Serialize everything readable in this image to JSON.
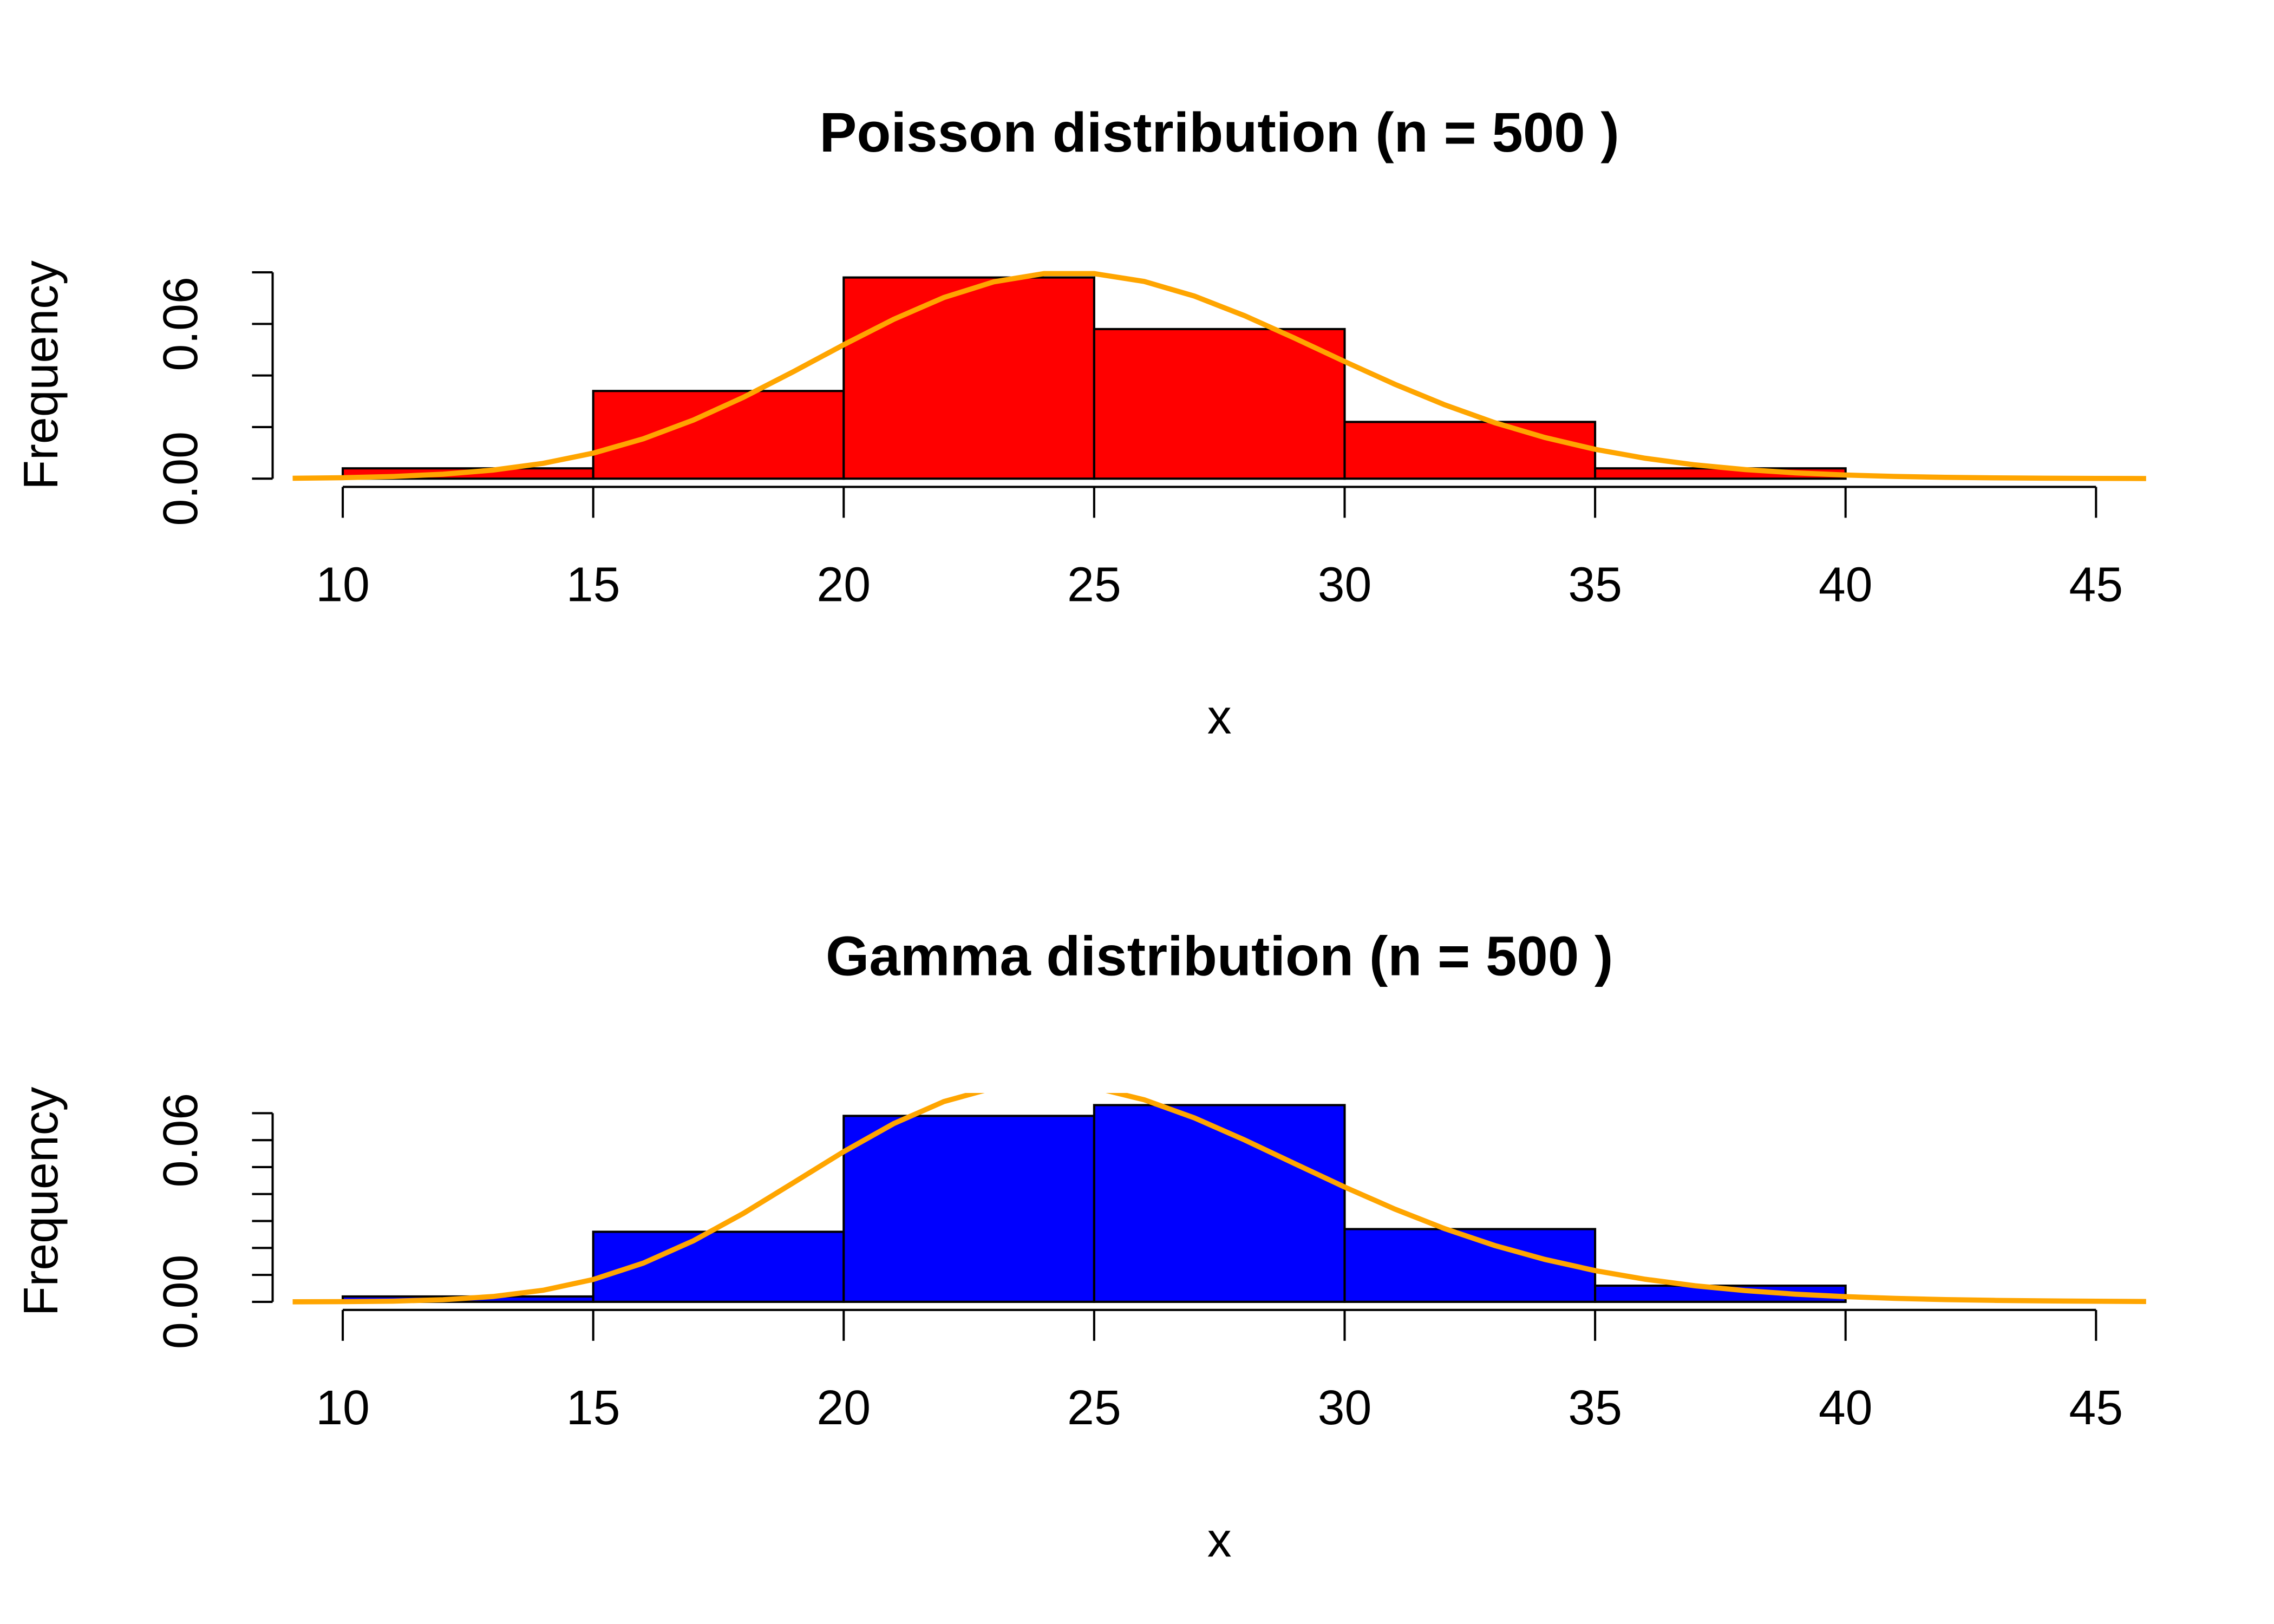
{
  "chart_data": [
    {
      "type": "histogram",
      "title": "Poisson distribution (n = 500 )",
      "xlabel": "x",
      "ylabel": "Frequency",
      "bins": [
        10,
        15,
        20,
        25,
        30,
        35,
        40
      ],
      "values": [
        0.004,
        0.034,
        0.078,
        0.058,
        0.022,
        0.004
      ],
      "color": "#ff0000",
      "xlim": [
        8.6,
        46.4
      ],
      "xticks": [
        10,
        15,
        20,
        25,
        30,
        35,
        40,
        45
      ],
      "ylim": [
        -0.0032,
        0.0835
      ],
      "yticks": [
        {
          "value": 0,
          "label": "0.00"
        },
        {
          "value": 0.02,
          "label": null
        },
        {
          "value": 0.04,
          "label": null
        },
        {
          "value": 0.06,
          "label": "0.06"
        },
        {
          "value": 0.08,
          "label": null
        }
      ],
      "curve": {
        "color": "#ffa500",
        "x": [
          9,
          10,
          11,
          12,
          13,
          14,
          15,
          16,
          17,
          18,
          19,
          20,
          21,
          22,
          23,
          24,
          25,
          26,
          27,
          28,
          29,
          30,
          31,
          32,
          33,
          34,
          35,
          36,
          37,
          38,
          39,
          40,
          41,
          42,
          43,
          44,
          45,
          46
        ],
        "values": [
          0.000146,
          0.000365,
          0.00083,
          0.00173,
          0.00332,
          0.00593,
          0.00989,
          0.01545,
          0.02273,
          0.03156,
          0.04153,
          0.05192,
          0.0618,
          0.07023,
          0.07634,
          0.07952,
          0.07952,
          0.07646,
          0.0708,
          0.06321,
          0.0545,
          0.04541,
          0.03662,
          0.02861,
          0.02168,
          0.01594,
          0.01138,
          0.00791,
          0.00534,
          0.00351,
          0.00225,
          0.00141,
          0.00086,
          0.00051,
          0.0003,
          0.00017,
          9e-05,
          5e-05
        ]
      }
    },
    {
      "type": "histogram",
      "title": "Gamma distribution (n = 500 )",
      "xlabel": "x",
      "ylabel": "Frequency",
      "bins": [
        10,
        15,
        20,
        25,
        30,
        35,
        40
      ],
      "values": [
        0.002,
        0.026,
        0.069,
        0.073,
        0.027,
        0.006
      ],
      "color": "#0000ff",
      "xlim": [
        8.6,
        46.4
      ],
      "xticks": [
        10,
        15,
        20,
        25,
        30,
        35,
        40,
        45
      ],
      "ylim": [
        -0.003,
        0.0775
      ],
      "yticks": [
        {
          "value": 0,
          "label": "0.00"
        },
        {
          "value": 0.01,
          "label": null
        },
        {
          "value": 0.02,
          "label": null
        },
        {
          "value": 0.03,
          "label": null
        },
        {
          "value": 0.04,
          "label": null
        },
        {
          "value": 0.05,
          "label": null
        },
        {
          "value": 0.06,
          "label": "0.06"
        },
        {
          "value": 0.07,
          "label": null
        }
      ],
      "curve": {
        "color": "#ffa500",
        "x": [
          9,
          10,
          11,
          12,
          13,
          14,
          15,
          16,
          17,
          18,
          19,
          20,
          21,
          22,
          23,
          24,
          25,
          26,
          27,
          28,
          29,
          30,
          31,
          32,
          33,
          34,
          35,
          36,
          37,
          38,
          39,
          40,
          41,
          42,
          43,
          44,
          45,
          46
        ],
        "values": [
          1.58e-05,
          7.3e-05,
          0.000265,
          0.000787,
          0.00198,
          0.0043,
          0.0083,
          0.01438,
          0.02266,
          0.03285,
          0.04425,
          0.05573,
          0.06615,
          0.07431,
          0.07944,
          0.08114,
          0.07953,
          0.07496,
          0.06825,
          0.0601,
          0.05131,
          0.0426,
          0.03444,
          0.02714,
          0.02088,
          0.01573,
          0.0116,
          0.00839,
          0.00596,
          0.00416,
          0.00285,
          0.00193,
          0.00128,
          0.00084,
          0.00054,
          0.00035,
          0.00022,
          0.00014
        ]
      }
    }
  ]
}
